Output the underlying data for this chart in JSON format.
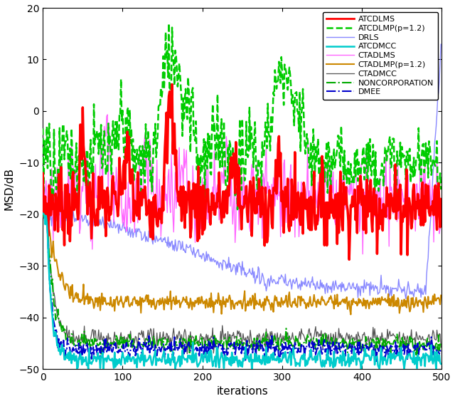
{
  "title": "",
  "xlabel": "iterations",
  "ylabel": "MSD/dB",
  "xlim": [
    0,
    500
  ],
  "ylim": [
    -50,
    20
  ],
  "yticks": [
    -50,
    -40,
    -30,
    -20,
    -10,
    0,
    10,
    20
  ],
  "xticks": [
    0,
    100,
    200,
    300,
    400,
    500
  ],
  "figsize": [
    6.4,
    5.63
  ],
  "dpi": 100,
  "series": [
    {
      "label": "ATCDLMS",
      "color": "#FF0000",
      "lw": 2.5,
      "ls": "solid",
      "zorder": 5
    },
    {
      "label": "ATCDLMP(p=1.2)",
      "color": "#00CC00",
      "lw": 1.8,
      "ls": "dashdot",
      "zorder": 4
    },
    {
      "label": "DRLS",
      "color": "#8888FF",
      "lw": 1.0,
      "ls": "solid",
      "zorder": 3
    },
    {
      "label": "ATCDMCC",
      "color": "#00CCCC",
      "lw": 1.8,
      "ls": "solid",
      "zorder": 6
    },
    {
      "label": "CTADLMS",
      "color": "#FF66FF",
      "lw": 1.0,
      "ls": "solid",
      "zorder": 3
    },
    {
      "label": "CTADLMP(p=1.2)",
      "color": "#CC8800",
      "lw": 1.5,
      "ls": "solid",
      "zorder": 4
    },
    {
      "label": "CTADMCC",
      "color": "#555555",
      "lw": 0.9,
      "ls": "solid",
      "zorder": 3
    },
    {
      "label": "NONCORPORATION",
      "color": "#00AA00",
      "lw": 1.5,
      "ls": "dashdot",
      "zorder": 4
    },
    {
      "label": "DMEE",
      "color": "#0000CC",
      "lw": 1.5,
      "ls": "dashdot",
      "zorder": 4
    }
  ]
}
